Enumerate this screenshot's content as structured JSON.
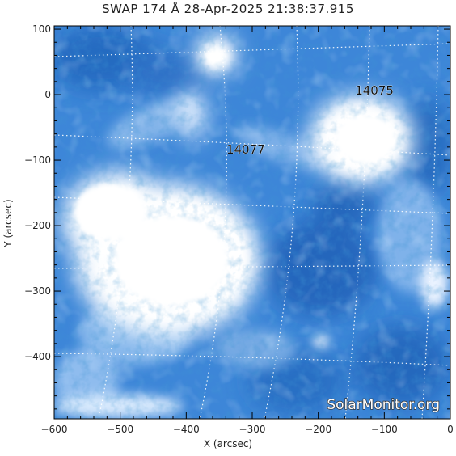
{
  "title": "SWAP 174 Å 28-Apr-2025 21:38:37.915",
  "x_axis": {
    "label": "X (arcsec)",
    "range": [
      -600,
      0
    ],
    "major_ticks": [
      -600,
      -500,
      -400,
      -300,
      -200,
      -100,
      0
    ]
  },
  "y_axis": {
    "label": "Y (arcsec)",
    "range": [
      -495,
      105
    ],
    "major_ticks": [
      100,
      0,
      -100,
      -200,
      -300,
      -400
    ]
  },
  "active_regions": [
    {
      "id": "14075",
      "x": -115,
      "y": 0
    },
    {
      "id": "14077",
      "x": -310,
      "y": -90
    }
  ],
  "watermark": "SolarMonitor.org",
  "colors": {
    "background": "#ffffff",
    "image_base": "#3d86d8",
    "image_dark": "#0d4fa0",
    "image_bright": "#ffffff",
    "grid": "#ffffff",
    "text": "#222222"
  }
}
